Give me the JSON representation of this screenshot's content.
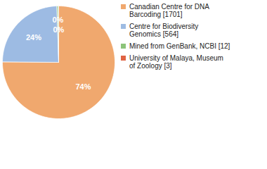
{
  "chart_data": {
    "type": "pie",
    "categories": [
      "Canadian Centre for DNA Barcoding [1701]",
      "Centre for Biodiversity Genomics [564]",
      "Mined from GenBank, NCBI [12]",
      "University of Malaya, Museum of Zoology [3]"
    ],
    "values": [
      74,
      24,
      0.4,
      0.1
    ],
    "value_labels": [
      "74%",
      "24%",
      "0%",
      "0%"
    ],
    "colors": [
      "#f0a86e",
      "#9dbbe3",
      "#8cc47a",
      "#e06444"
    ],
    "data_labels": true,
    "legend": "top-right"
  }
}
